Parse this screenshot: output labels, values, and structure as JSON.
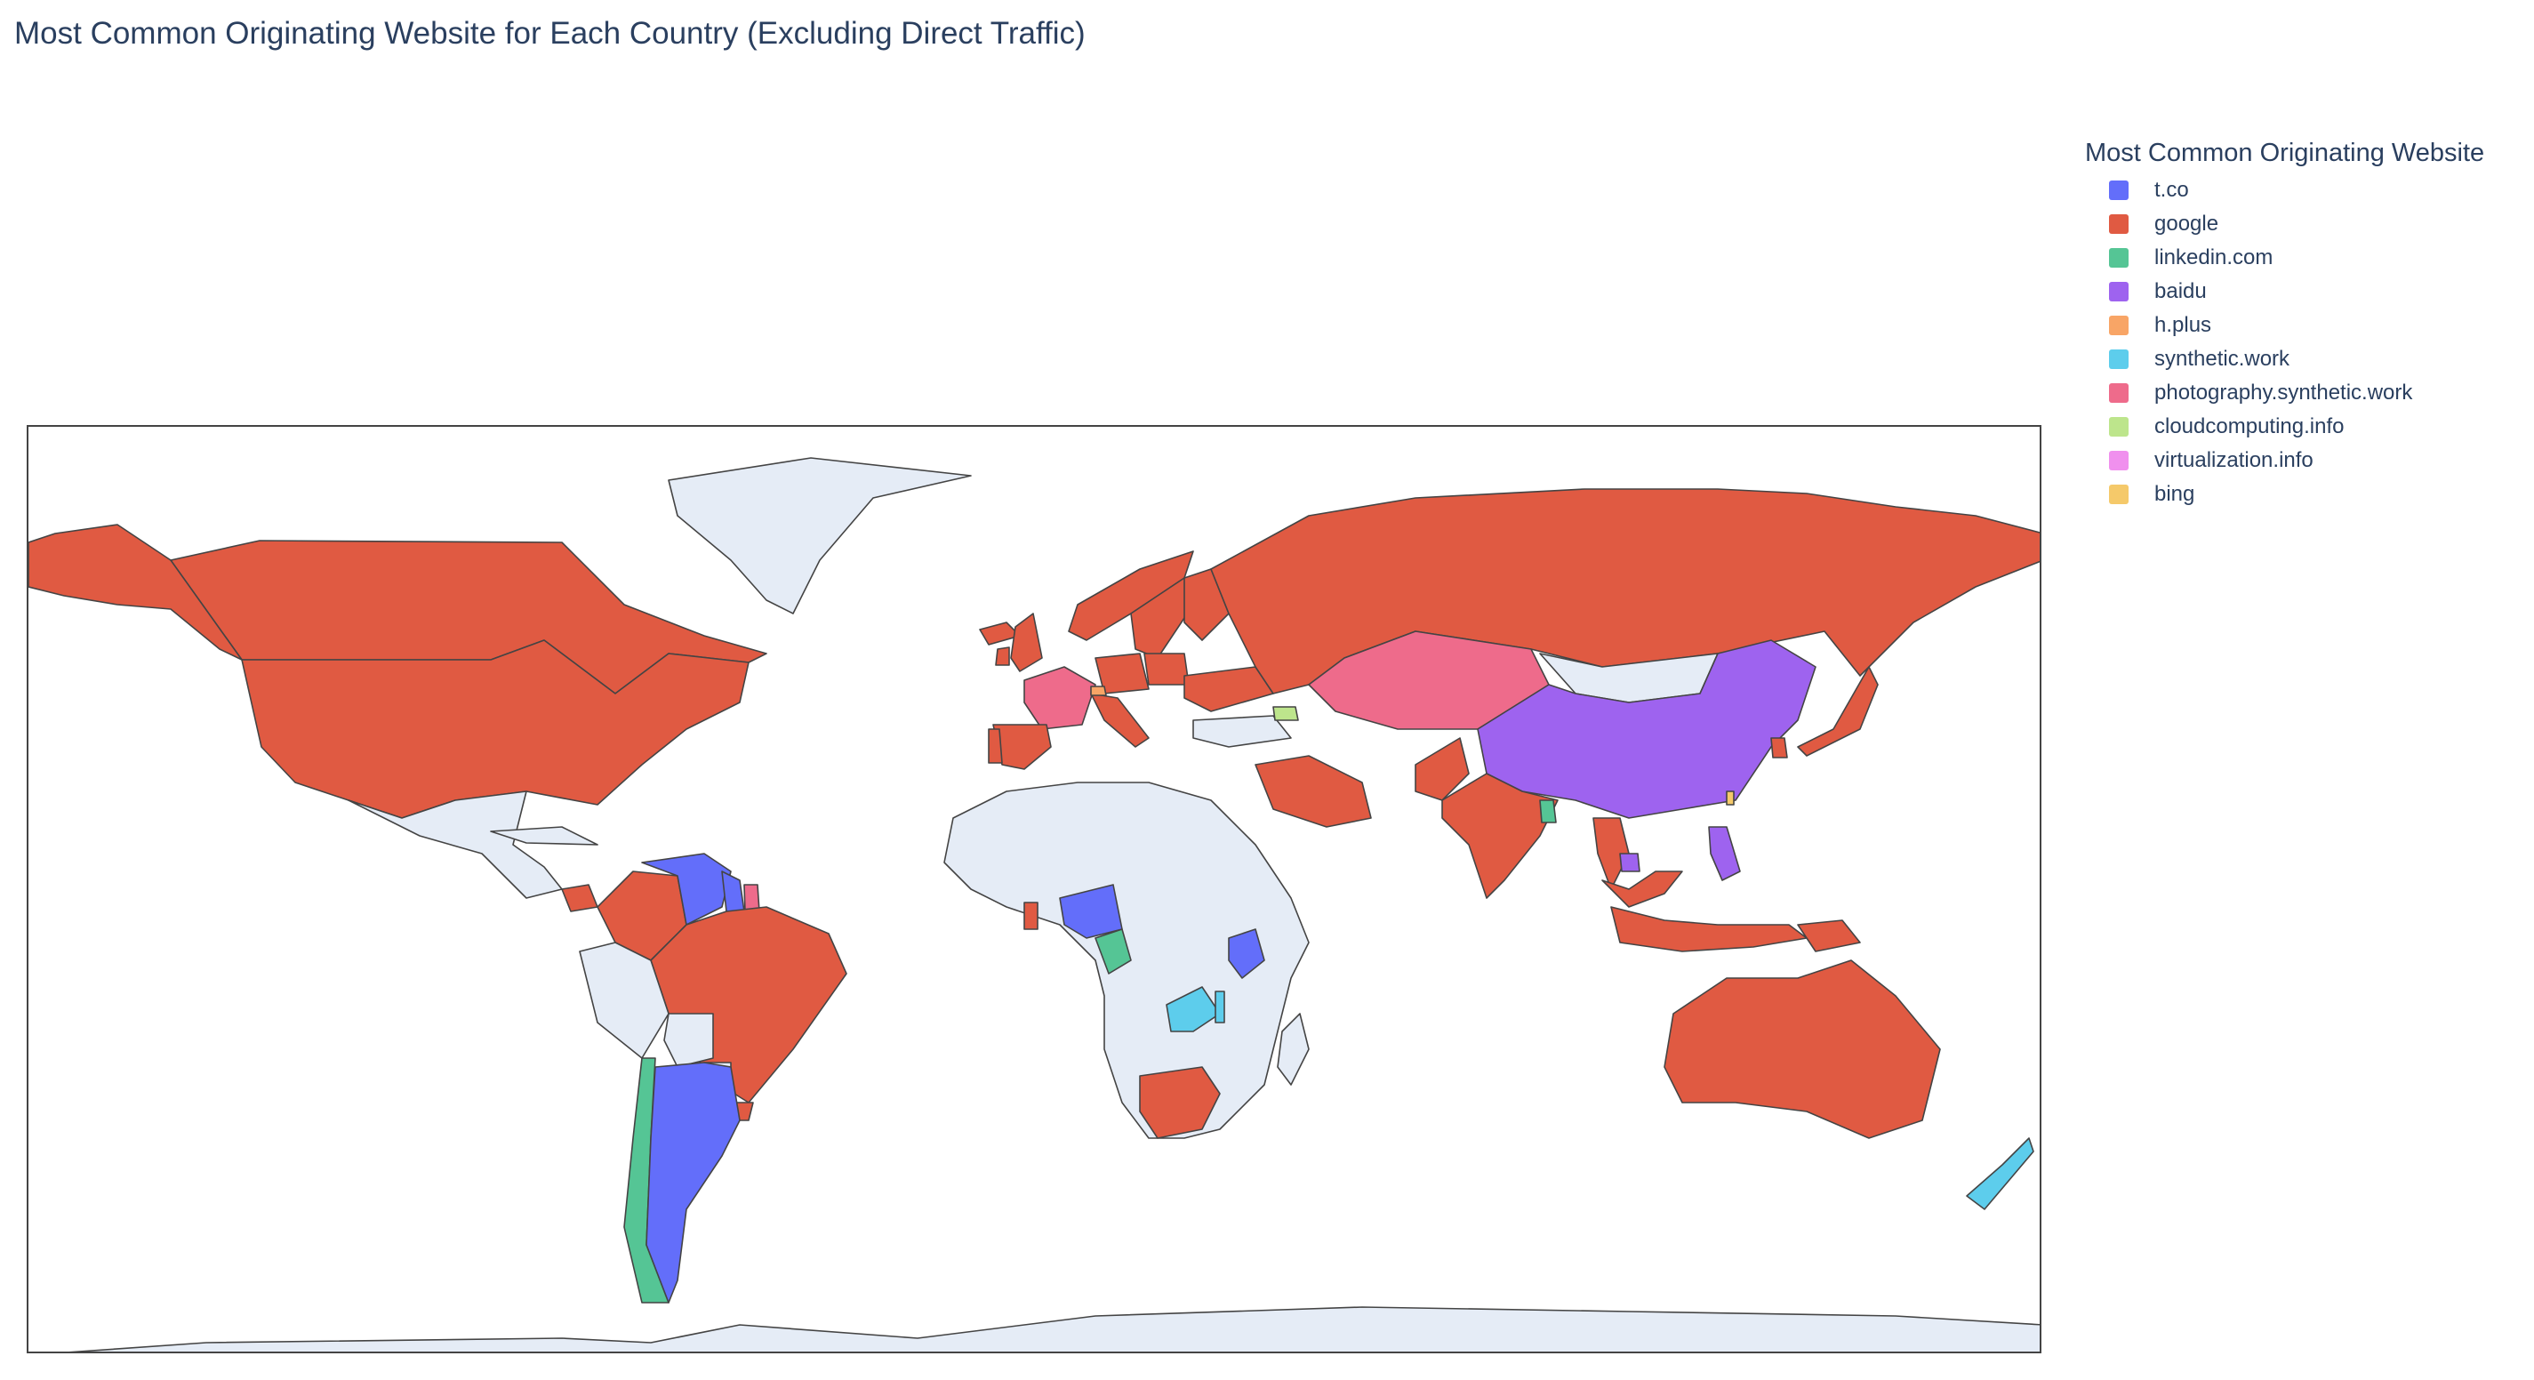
{
  "title": "Most Common Originating Website for Each Country (Excluding Direct Traffic)",
  "legend": {
    "title": "Most Common Originating Website",
    "items": [
      {
        "label": "t.co",
        "color": "#636efa"
      },
      {
        "label": "google",
        "color": "#e05a42"
      },
      {
        "label": "linkedin.com",
        "color": "#55c595"
      },
      {
        "label": "baidu",
        "color": "#9e63ef"
      },
      {
        "label": "h.plus",
        "color": "#f8a566"
      },
      {
        "label": "synthetic.work",
        "color": "#5dcdec"
      },
      {
        "label": "photography.synthetic.work",
        "color": "#ee6b8b"
      },
      {
        "label": "cloudcomputing.info",
        "color": "#bde58c"
      },
      {
        "label": "virtualization.info",
        "color": "#f090ee"
      },
      {
        "label": "bing",
        "color": "#f5c96a"
      }
    ]
  },
  "map": {
    "no_data_color": "#e5ecf6",
    "border_color": "#444444",
    "regions": [
      {
        "name": "Canada",
        "site": "google"
      },
      {
        "name": "United States",
        "site": "google"
      },
      {
        "name": "Alaska",
        "site": "google"
      },
      {
        "name": "Greenland",
        "site": null
      },
      {
        "name": "Mexico",
        "site": null
      },
      {
        "name": "Cuba",
        "site": null
      },
      {
        "name": "Costa Rica",
        "site": "google"
      },
      {
        "name": "Colombia",
        "site": "google"
      },
      {
        "name": "Venezuela",
        "site": "t.co"
      },
      {
        "name": "Guyana",
        "site": "t.co"
      },
      {
        "name": "Suriname",
        "site": "photography.synthetic.work"
      },
      {
        "name": "Brazil",
        "site": "google"
      },
      {
        "name": "Peru",
        "site": null
      },
      {
        "name": "Bolivia",
        "site": null
      },
      {
        "name": "Paraguay",
        "site": null
      },
      {
        "name": "Uruguay",
        "site": "google"
      },
      {
        "name": "Chile",
        "site": "linkedin.com"
      },
      {
        "name": "Argentina",
        "site": "t.co"
      },
      {
        "name": "Iceland",
        "site": "google"
      },
      {
        "name": "United Kingdom",
        "site": "google"
      },
      {
        "name": "Ireland",
        "site": "google"
      },
      {
        "name": "Norway",
        "site": "google"
      },
      {
        "name": "Sweden",
        "site": "google"
      },
      {
        "name": "Finland",
        "site": "google"
      },
      {
        "name": "Germany",
        "site": "google"
      },
      {
        "name": "Poland",
        "site": "google"
      },
      {
        "name": "Ukraine",
        "site": "google"
      },
      {
        "name": "France",
        "site": "photography.synthetic.work"
      },
      {
        "name": "Spain",
        "site": "google"
      },
      {
        "name": "Portugal",
        "site": "google"
      },
      {
        "name": "Italy",
        "site": "google"
      },
      {
        "name": "Switzerland",
        "site": "h.plus"
      },
      {
        "name": "Turkey",
        "site": null
      },
      {
        "name": "Georgia",
        "site": "cloudcomputing.info"
      },
      {
        "name": "Russia",
        "site": "google"
      },
      {
        "name": "Kazakhstan",
        "site": "photography.synthetic.work"
      },
      {
        "name": "Mongolia",
        "site": null
      },
      {
        "name": "China",
        "site": "baidu"
      },
      {
        "name": "Japan",
        "site": "google"
      },
      {
        "name": "South Korea",
        "site": "google"
      },
      {
        "name": "Saudi Arabia",
        "site": "google"
      },
      {
        "name": "Pakistan",
        "site": "google"
      },
      {
        "name": "India",
        "site": "google"
      },
      {
        "name": "Bangladesh",
        "site": "linkedin.com"
      },
      {
        "name": "Thailand",
        "site": "google"
      },
      {
        "name": "Cambodia",
        "site": "baidu"
      },
      {
        "name": "Taiwan",
        "site": "bing"
      },
      {
        "name": "Philippines",
        "site": "baidu"
      },
      {
        "name": "Malaysia",
        "site": "google"
      },
      {
        "name": "Indonesia",
        "site": "google"
      },
      {
        "name": "Papua New Guinea",
        "site": "google"
      },
      {
        "name": "Australia",
        "site": "google"
      },
      {
        "name": "New Zealand",
        "site": "synthetic.work"
      },
      {
        "name": "Africa (other)",
        "site": null
      },
      {
        "name": "Ghana",
        "site": "google"
      },
      {
        "name": "Nigeria",
        "site": "t.co"
      },
      {
        "name": "Cameroon",
        "site": "linkedin.com"
      },
      {
        "name": "Kenya",
        "site": "t.co"
      },
      {
        "name": "Zambia",
        "site": "synthetic.work"
      },
      {
        "name": "Malawi",
        "site": "synthetic.work"
      },
      {
        "name": "South Africa",
        "site": "google"
      },
      {
        "name": "Madagascar",
        "site": null
      },
      {
        "name": "Antarctica",
        "site": null
      }
    ]
  }
}
